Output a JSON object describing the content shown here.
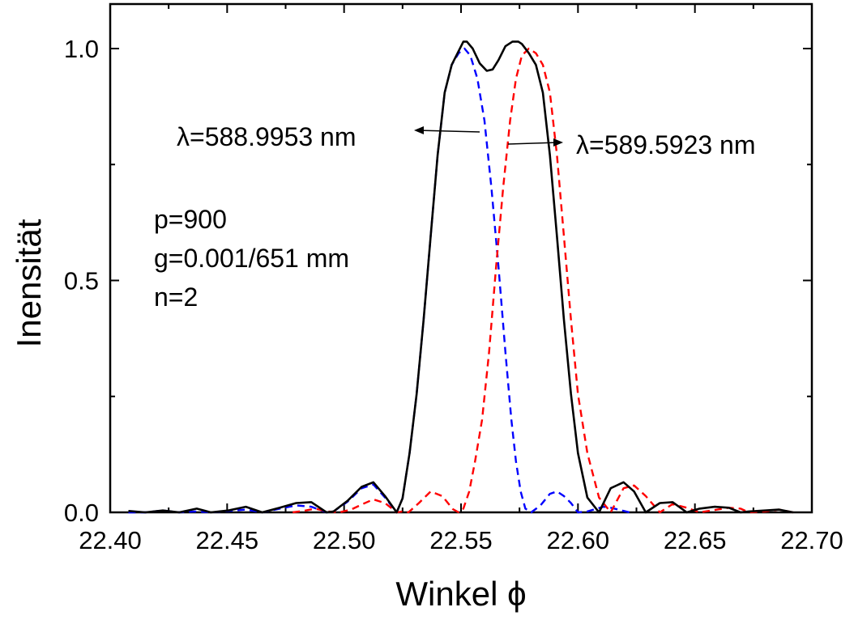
{
  "chart_data": {
    "type": "line",
    "title": "",
    "xlabel": "Winkel ϕ",
    "ylabel": "Inensität",
    "xlim": [
      22.4,
      22.7
    ],
    "ylim": [
      0.0,
      1.0
    ],
    "x_ticks": [
      "22.40",
      "22.45",
      "22.50",
      "22.55",
      "22.60",
      "22.65",
      "22.70"
    ],
    "y_ticks": [
      "0.0",
      "0.5",
      "1.0"
    ],
    "grid": false,
    "legend": "none",
    "series": [
      {
        "style": "dashed",
        "color": "#0000ff",
        "x": [
          22.4078,
          22.415,
          22.4225,
          22.4295,
          22.4365,
          22.443,
          22.4505,
          22.458,
          22.465,
          22.4725,
          22.4795,
          22.486,
          22.4925,
          22.4955,
          22.5015,
          22.5075,
          22.5125,
          22.5175,
          22.5225,
          22.525,
          22.528,
          22.531,
          22.534,
          22.537,
          22.54,
          22.543,
          22.546,
          22.549,
          22.5515,
          22.554,
          22.557,
          22.56,
          22.563,
          22.566,
          22.569,
          22.5715,
          22.5735,
          22.5755,
          22.5775,
          22.58,
          22.584,
          22.588,
          22.591,
          22.594,
          22.597,
          22.6,
          22.604,
          22.608,
          22.611,
          22.614,
          22.618,
          22.622
        ],
        "y": [
          0.0,
          0.0,
          0.004,
          0.0,
          0.002,
          0.0,
          0.003,
          0.006,
          0.0,
          0.008,
          0.015,
          0.012,
          0.0,
          0.002,
          0.023,
          0.052,
          0.06,
          0.032,
          0.0,
          0.03,
          0.128,
          0.255,
          0.415,
          0.595,
          0.77,
          0.905,
          0.965,
          0.99,
          1.0,
          0.985,
          0.935,
          0.845,
          0.7,
          0.53,
          0.345,
          0.2,
          0.11,
          0.045,
          0.008,
          0.0,
          0.015,
          0.04,
          0.045,
          0.035,
          0.02,
          0.0,
          0.002,
          0.008,
          0.012,
          0.01,
          0.005,
          0.0
        ]
      },
      {
        "style": "dashed",
        "color": "#ff0000",
        "x": [
          22.478,
          22.4825,
          22.4875,
          22.493,
          22.498,
          22.503,
          22.508,
          22.5125,
          22.5175,
          22.5225,
          22.525,
          22.5275,
          22.532,
          22.537,
          22.542,
          22.5465,
          22.549,
          22.551,
          22.5535,
          22.556,
          22.559,
          22.562,
          22.565,
          22.568,
          22.571,
          22.5735,
          22.576,
          22.579,
          22.582,
          22.585,
          22.588,
          22.591,
          22.594,
          22.597,
          22.6,
          22.604,
          22.609,
          22.614,
          22.6195,
          22.624,
          22.629,
          22.635,
          22.6405,
          22.6465,
          22.652,
          22.6585,
          22.6645,
          22.6695,
          22.673,
          22.68,
          22.686,
          22.692
        ],
        "y": [
          0.0,
          0.003,
          0.008,
          0.002,
          0.0,
          0.006,
          0.018,
          0.028,
          0.02,
          0.0,
          0.002,
          0.0,
          0.02,
          0.045,
          0.035,
          0.007,
          0.0,
          0.008,
          0.045,
          0.11,
          0.2,
          0.345,
          0.53,
          0.7,
          0.845,
          0.935,
          0.985,
          1.0,
          0.99,
          0.965,
          0.905,
          0.77,
          0.595,
          0.415,
          0.255,
          0.128,
          0.032,
          0.0,
          0.052,
          0.058,
          0.035,
          0.0,
          0.018,
          0.01,
          0.0,
          0.005,
          0.01,
          0.008,
          0.0,
          0.002,
          0.006,
          0.0
        ]
      },
      {
        "style": "solid",
        "color": "#000000",
        "x": [
          22.4078,
          22.415,
          22.4225,
          22.4295,
          22.437,
          22.443,
          22.4505,
          22.458,
          22.465,
          22.4725,
          22.4795,
          22.486,
          22.4925,
          22.4955,
          22.5015,
          22.5075,
          22.5125,
          22.5175,
          22.5225,
          22.525,
          22.528,
          22.531,
          22.534,
          22.537,
          22.54,
          22.543,
          22.546,
          22.549,
          22.551,
          22.5525,
          22.555,
          22.558,
          22.561,
          22.5635,
          22.566,
          22.569,
          22.572,
          22.5745,
          22.576,
          22.579,
          22.582,
          22.585,
          22.588,
          22.591,
          22.594,
          22.597,
          22.6,
          22.604,
          22.609,
          22.614,
          22.6195,
          22.624,
          22.629,
          22.635,
          22.6405,
          22.6465,
          22.652,
          22.6585,
          22.6645,
          22.6695,
          22.673,
          22.68,
          22.686,
          22.692
        ],
        "y": [
          0.003,
          0.0,
          0.004,
          0.0,
          0.008,
          0.0,
          0.004,
          0.012,
          0.0,
          0.01,
          0.02,
          0.022,
          0.0,
          0.002,
          0.025,
          0.055,
          0.065,
          0.035,
          0.0,
          0.03,
          0.128,
          0.255,
          0.415,
          0.595,
          0.77,
          0.905,
          0.965,
          0.995,
          1.015,
          1.015,
          1.0,
          0.968,
          0.952,
          0.955,
          0.975,
          1.005,
          1.015,
          1.015,
          1.01,
          0.99,
          0.965,
          0.905,
          0.77,
          0.595,
          0.415,
          0.255,
          0.128,
          0.032,
          0.0,
          0.052,
          0.065,
          0.045,
          0.0,
          0.02,
          0.022,
          0.0,
          0.008,
          0.012,
          0.01,
          0.0,
          0.002,
          0.004,
          0.006,
          0.0
        ]
      }
    ],
    "annotations": [
      {
        "text": "λ=588.9953 nm",
        "target_series": 0
      },
      {
        "text": "λ=589.5923 nm",
        "target_series": 1
      },
      {
        "text": "p=900"
      },
      {
        "text": "g=0.001/651 mm"
      },
      {
        "text": "n=2"
      }
    ]
  }
}
